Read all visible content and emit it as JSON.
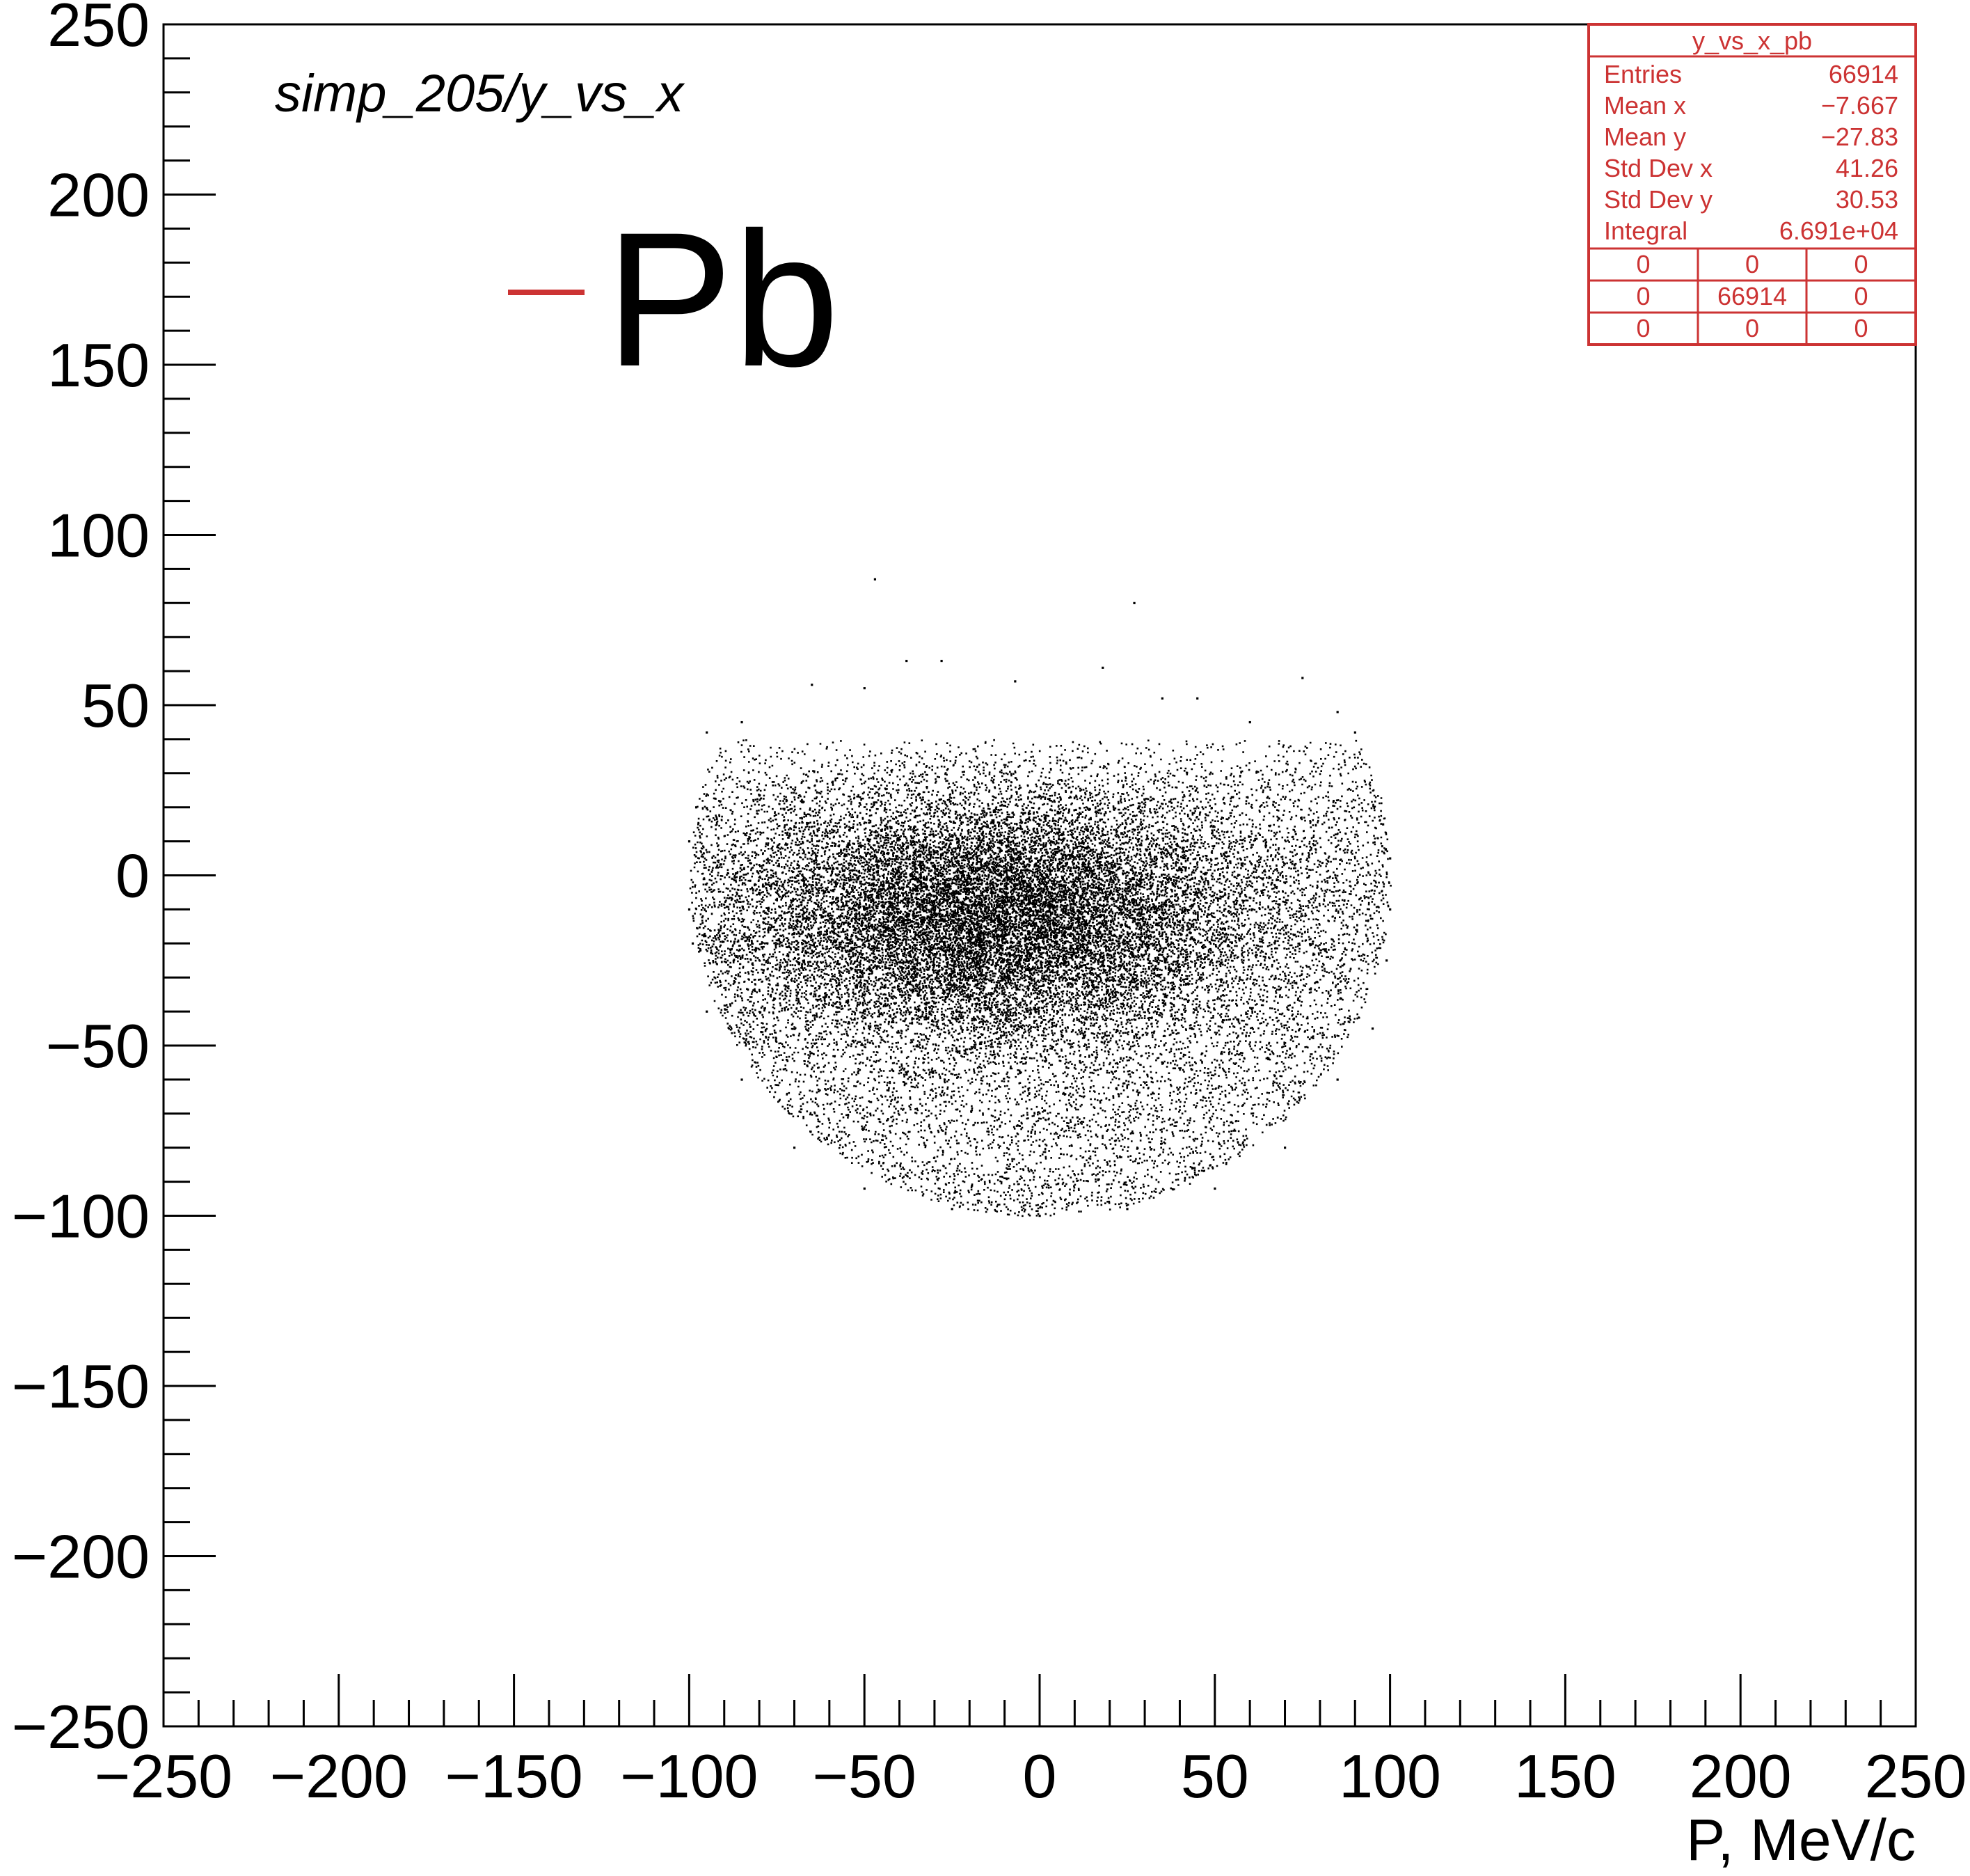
{
  "chart_data": {
    "type": "scatter",
    "title": "simp_205/y_vs_x",
    "xlabel": "P, MeV/c",
    "ylabel": "",
    "xlim": [
      -250,
      250
    ],
    "ylim": [
      -250,
      250
    ],
    "x_ticks": [
      "−250",
      "−200",
      "−150",
      "−100",
      "−50",
      "0",
      "50",
      "100",
      "150",
      "200",
      "250"
    ],
    "y_ticks": [
      "250",
      "200",
      "150",
      "100",
      "50",
      "0",
      "−50",
      "−100",
      "−150",
      "−200",
      "−250"
    ],
    "legend": {
      "entry": "Pb",
      "color": "#cc3333",
      "placement": "top-left"
    },
    "series": [
      {
        "name": "Pb",
        "point_count": 66914,
        "sample_points": [
          [
            -47,
            87
          ],
          [
            27,
            80
          ],
          [
            -38,
            63
          ],
          [
            -28,
            63
          ],
          [
            18,
            61
          ],
          [
            75,
            58
          ],
          [
            -65,
            56
          ],
          [
            -50,
            55
          ],
          [
            -7,
            57
          ],
          [
            35,
            52
          ],
          [
            45,
            52
          ],
          [
            -85,
            45
          ],
          [
            60,
            45
          ],
          [
            -95,
            42
          ],
          [
            85,
            48
          ],
          [
            90,
            42
          ],
          [
            -98,
            20
          ],
          [
            -100,
            10
          ],
          [
            98,
            15
          ],
          [
            100,
            5
          ],
          [
            -100,
            -10
          ],
          [
            100,
            -10
          ],
          [
            -99,
            -20
          ],
          [
            99,
            -25
          ],
          [
            -95,
            -40
          ],
          [
            95,
            -45
          ],
          [
            -85,
            -60
          ],
          [
            85,
            -60
          ],
          [
            -70,
            -80
          ],
          [
            70,
            -80
          ],
          [
            -50,
            -92
          ],
          [
            50,
            -92
          ],
          [
            -25,
            -98
          ],
          [
            0,
            -100
          ],
          [
            25,
            -98
          ]
        ]
      }
    ]
  },
  "stats_box": {
    "title": "y_vs_x_pb",
    "color": "#cc3333",
    "rows": [
      {
        "label": "Entries",
        "value": "66914"
      },
      {
        "label": "Mean x",
        "value": "−7.667"
      },
      {
        "label": "Mean y",
        "value": "−27.83"
      },
      {
        "label": "Std Dev x",
        "value": "41.26"
      },
      {
        "label": "Std Dev y",
        "value": "30.53"
      },
      {
        "label": "Integral",
        "value": "6.691e+04"
      }
    ],
    "grid": [
      [
        "0",
        "0",
        "0"
      ],
      [
        "0",
        "66914",
        "0"
      ],
      [
        "0",
        "0",
        "0"
      ]
    ]
  }
}
